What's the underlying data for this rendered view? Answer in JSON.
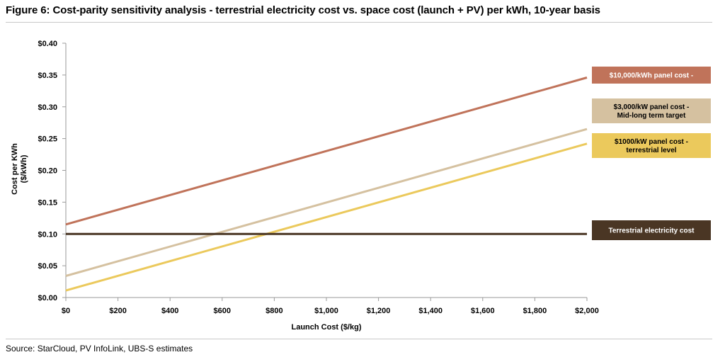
{
  "figure": {
    "title": "Figure 6: Cost-parity sensitivity analysis - terrestrial electricity cost vs. space cost (launch + PV) per kWh, 10-year basis",
    "source": "Source: StarCloud, PV InfoLink, UBS-S estimates"
  },
  "chart_data": {
    "type": "line",
    "title": "Figure 6: Cost-parity sensitivity analysis - terrestrial electricity cost vs. space cost (launch + PV) per kWh, 10-year basis",
    "xlabel": "Launch Cost ($/kg)",
    "ylabel_lines": [
      "Cost per KWh",
      "($/kWh)"
    ],
    "xlim": [
      0,
      2000
    ],
    "ylim": [
      0,
      0.4
    ],
    "x_ticks": [
      0,
      200,
      400,
      600,
      800,
      1000,
      1200,
      1400,
      1600,
      1800,
      2000
    ],
    "x_tick_labels": [
      "$0",
      "$200",
      "$400",
      "$600",
      "$800",
      "$1,000",
      "$1,200",
      "$1,400",
      "$1,600",
      "$1,800",
      "$2,000"
    ],
    "y_ticks": [
      0,
      0.05,
      0.1,
      0.15,
      0.2,
      0.25,
      0.3,
      0.35,
      0.4
    ],
    "y_tick_labels": [
      "$0.00",
      "$0.05",
      "$0.10",
      "$0.15",
      "$0.20",
      "$0.25",
      "$0.30",
      "$0.35",
      "$0.40"
    ],
    "grid": false,
    "legend": "direct labels at right end of lines",
    "series": [
      {
        "name": "$10,000/kWh panel cost -",
        "label_lines": [
          "$10,000/kWh panel cost -"
        ],
        "color": "#c0735a",
        "x": [
          0,
          2000
        ],
        "y": [
          0.115,
          0.346
        ]
      },
      {
        "name": "$3,000/kW panel cost - Mid-long term target",
        "label_lines": [
          "$3,000/kW panel cost -",
          "Mid-long term target"
        ],
        "color": "#d5c1a0",
        "x": [
          0,
          2000
        ],
        "y": [
          0.034,
          0.265
        ]
      },
      {
        "name": "$1000/kW panel cost - terrestrial level",
        "label_lines": [
          "$1000/kW panel cost -",
          "terrestrial level"
        ],
        "color": "#ebc95c",
        "x": [
          0,
          2000
        ],
        "y": [
          0.011,
          0.242
        ]
      },
      {
        "name": "Terrestrial electricity cost",
        "label_lines": [
          "Terrestrial electricity cost"
        ],
        "color": "#4a3624",
        "x": [
          0,
          2000
        ],
        "y": [
          0.1,
          0.1
        ]
      }
    ]
  }
}
